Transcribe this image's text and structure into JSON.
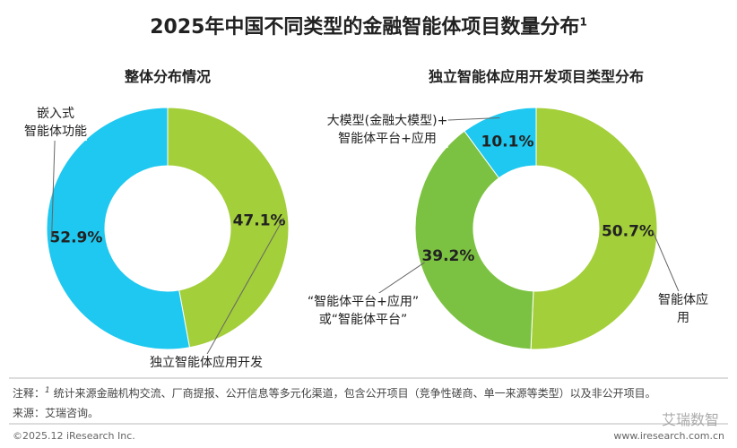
{
  "title": "2025年中国不同类型的金融智能体项目数量分布",
  "title_note": "1",
  "chart_data": [
    {
      "type": "pie",
      "title": "整体分布情况",
      "categories": [
        "独立智能体应用开发",
        "嵌入式\n智能体功能"
      ],
      "values": [
        47.1,
        52.9
      ],
      "value_labels": [
        "47.1%",
        "52.9%"
      ],
      "colors": [
        "#a3cf3a",
        "#1ec8f0"
      ]
    },
    {
      "type": "pie",
      "title": "独立智能体应用开发项目类型分布",
      "categories": [
        "智能体应用",
        "“智能体平台+应用”\n或“智能体平台”",
        "大模型(金融大模型)+\n智能体平台+应用"
      ],
      "values": [
        50.7,
        39.2,
        10.1
      ],
      "value_labels": [
        "50.7%",
        "39.2%",
        "10.1%"
      ],
      "colors": [
        "#a3cf3a",
        "#7cc242",
        "#1ec8f0"
      ]
    }
  ],
  "footer": {
    "note_label": "注释：",
    "note_mark": "1",
    "note": "统计来源金融机构交流、厂商提报、公开信息等多元化渠道，包含公开项目（竞争性磋商、单一来源等类型）以及非公开项目。",
    "source": "来源：艾瑞咨询。",
    "copyright": "©2025.12 iResearch Inc.",
    "website": "www.iresearch.com.cn",
    "watermark": "艾瑞数智"
  }
}
